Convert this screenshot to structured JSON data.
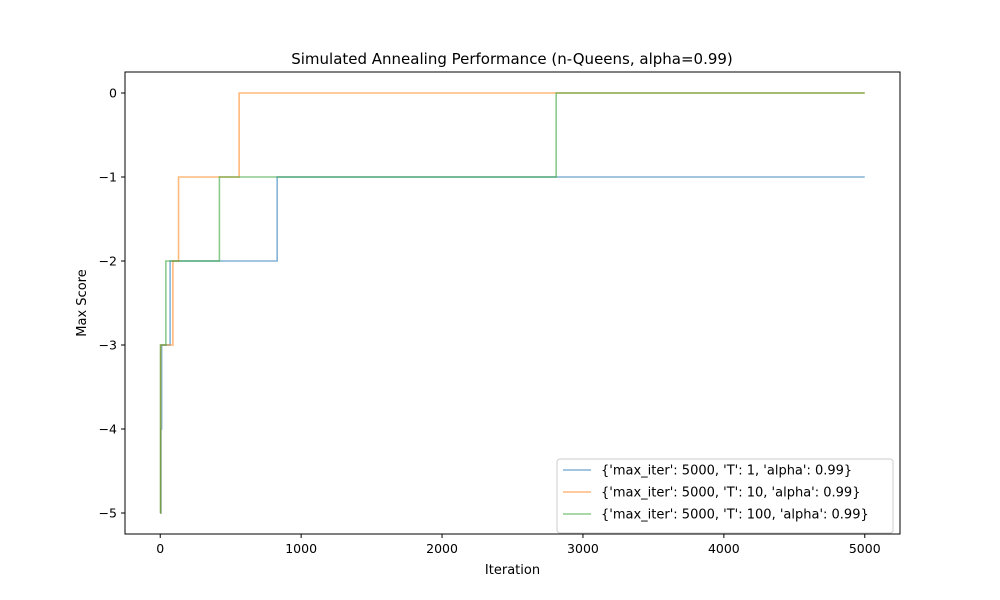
{
  "chart_data": {
    "type": "line",
    "title": "Simulated Annealing Performance (n-Queens, alpha=0.99)",
    "xlabel": "Iteration",
    "ylabel": "Max Score",
    "xlim": [
      -250,
      5250
    ],
    "ylim": [
      -5.25,
      0.25
    ],
    "xticks": [
      0,
      1000,
      2000,
      3000,
      4000,
      5000
    ],
    "yticks": [
      0,
      -1,
      -2,
      -3,
      -4,
      -5
    ],
    "xtick_labels": [
      "0",
      "1000",
      "2000",
      "3000",
      "4000",
      "5000"
    ],
    "ytick_labels": [
      "0",
      "−1",
      "−2",
      "−3",
      "−4",
      "−5"
    ],
    "grid": false,
    "legend_position": "lower-right",
    "line_style": "steps-post",
    "series": [
      {
        "name": "{'max_iter': 5000, 'T': 1, 'alpha': 0.99}",
        "color": "#1f77b4",
        "x": [
          0,
          5,
          10,
          70,
          830,
          5000
        ],
        "y": [
          -5,
          -4,
          -3,
          -2,
          -1,
          -1
        ]
      },
      {
        "name": "{'max_iter': 5000, 'T': 10, 'alpha': 0.99}",
        "color": "#ff7f0e",
        "x": [
          0,
          3,
          90,
          130,
          560,
          5000
        ],
        "y": [
          -5,
          -3,
          -2,
          -1,
          0,
          0
        ]
      },
      {
        "name": "{'max_iter': 5000, 'T': 100, 'alpha': 0.99}",
        "color": "#2ca02c",
        "x": [
          0,
          2,
          40,
          420,
          2810,
          5000
        ],
        "y": [
          -5,
          -3,
          -2,
          -1,
          0,
          0
        ]
      }
    ]
  }
}
